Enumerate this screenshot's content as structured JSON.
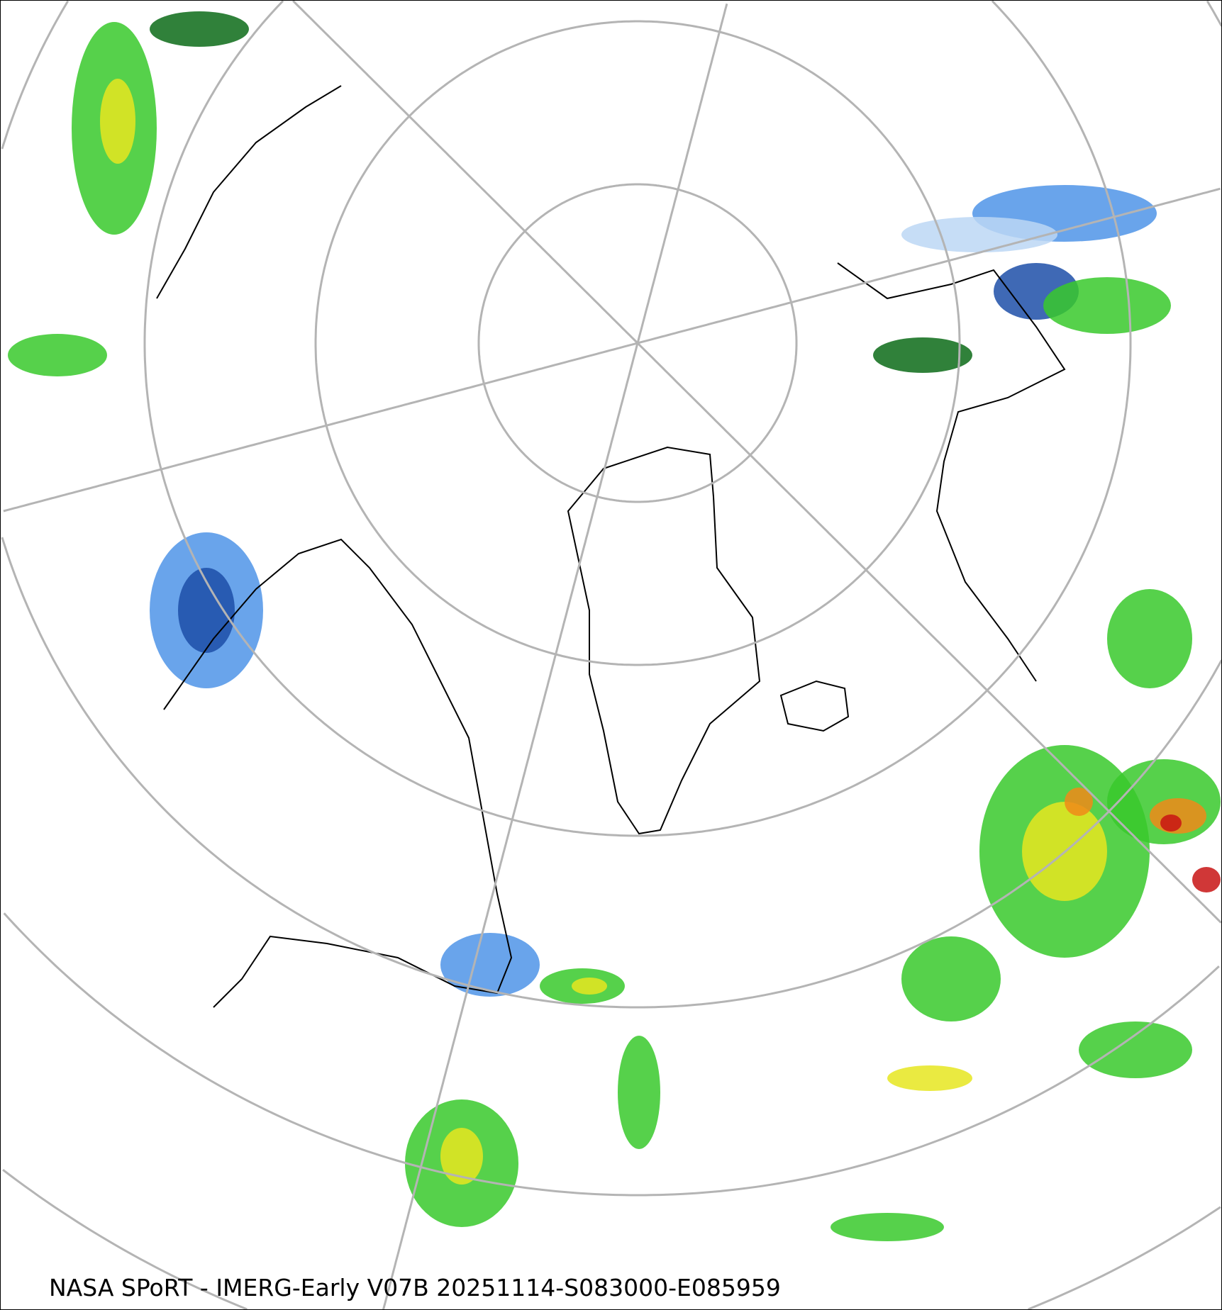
{
  "caption": "NASA SPoRT - IMERG-Early V07B 20251114-S083000-E085959",
  "map": {
    "projection": "north-polar-stereographic",
    "product": "IMERG-Early V07B precipitation",
    "colors": {
      "graticule": "#b4b4b4",
      "coastline": "#000000",
      "snow_light": "#bcd7f5",
      "snow_mid": "#4f94e8",
      "snow_heavy": "#1d4fa8",
      "snow_mix": "#e34bd6",
      "rain_light": "#0c6b17",
      "rain_mid": "#38c92c",
      "rain_moderate": "#e6e620",
      "rain_heavy": "#f08a19",
      "rain_extreme": "#c81414"
    }
  }
}
